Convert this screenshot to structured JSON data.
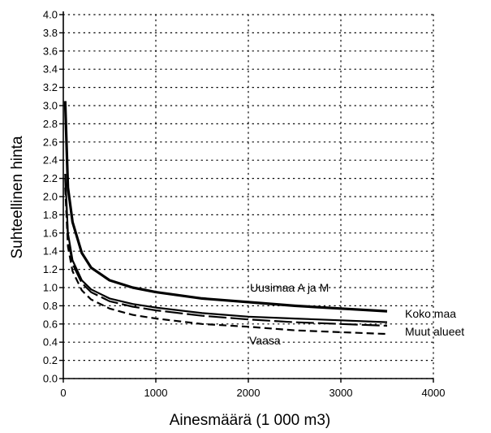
{
  "chart_data": {
    "type": "line",
    "title": "",
    "xlabel": "Ainesmäärä (1 000 m3)",
    "ylabel": "Suhteellinen hinta",
    "xlim": [
      0,
      4000
    ],
    "ylim": [
      0,
      4.0
    ],
    "x_ticks": [
      0,
      1000,
      2000,
      3000,
      4000
    ],
    "x_tick_labels": [
      "0",
      "1000",
      "2000",
      "3000",
      "4000"
    ],
    "y_ticks": [
      0.0,
      0.2,
      0.4,
      0.6,
      0.8,
      1.0,
      1.2,
      1.4,
      1.6,
      1.8,
      2.0,
      2.2,
      2.4,
      2.6,
      2.8,
      3.0,
      3.2,
      3.4,
      3.6,
      3.8,
      4.0
    ],
    "y_tick_labels": [
      "0.0",
      "0.2",
      "0.4",
      "0.6",
      "0.8",
      "1.0",
      "1.2",
      "1.4",
      "1.6",
      "1.8",
      "2.0",
      "2.2",
      "2.4",
      "2.6",
      "2.8",
      "3.0",
      "3.2",
      "3.4",
      "3.6",
      "3.8",
      "4.0"
    ],
    "grid": "dotted",
    "series": [
      {
        "name": "Uusimaa A ja M",
        "style": "solid-thick",
        "x": [
          20,
          50,
          100,
          200,
          300,
          500,
          750,
          1000,
          1500,
          2000,
          2500,
          3000,
          3500
        ],
        "y": [
          3.05,
          2.1,
          1.72,
          1.38,
          1.22,
          1.08,
          1.0,
          0.95,
          0.88,
          0.84,
          0.8,
          0.77,
          0.74
        ]
      },
      {
        "name": "Koko maa",
        "style": "solid",
        "x": [
          20,
          50,
          100,
          200,
          300,
          500,
          750,
          1000,
          1500,
          2000,
          2500,
          3000,
          3500
        ],
        "y": [
          2.25,
          1.6,
          1.3,
          1.08,
          0.98,
          0.88,
          0.82,
          0.78,
          0.72,
          0.68,
          0.66,
          0.64,
          0.62
        ]
      },
      {
        "name": "Muut alueet",
        "style": "long-dash",
        "x": [
          20,
          50,
          100,
          200,
          300,
          500,
          750,
          1000,
          1500,
          2000,
          2500,
          3000,
          3500
        ],
        "y": [
          2.2,
          1.55,
          1.26,
          1.05,
          0.95,
          0.85,
          0.79,
          0.75,
          0.69,
          0.65,
          0.62,
          0.6,
          0.58
        ]
      },
      {
        "name": "Vaasa",
        "style": "dash",
        "x": [
          20,
          50,
          100,
          200,
          300,
          500,
          750,
          1000,
          1500,
          2000,
          2500,
          3000,
          3500
        ],
        "y": [
          2.1,
          1.45,
          1.18,
          0.97,
          0.87,
          0.77,
          0.7,
          0.66,
          0.6,
          0.57,
          0.53,
          0.51,
          0.49
        ]
      }
    ],
    "annotations": [
      {
        "text": "Uusimaa A ja M",
        "series": "Uusimaa A ja M"
      },
      {
        "text": "Koko maa",
        "series": "Koko maa"
      },
      {
        "text": "Muut alueet",
        "series": "Muut alueet"
      },
      {
        "text": "Vaasa",
        "series": "Vaasa"
      }
    ],
    "colors": {
      "line": "#000000",
      "grid": "#000000",
      "background": "#ffffff"
    }
  }
}
